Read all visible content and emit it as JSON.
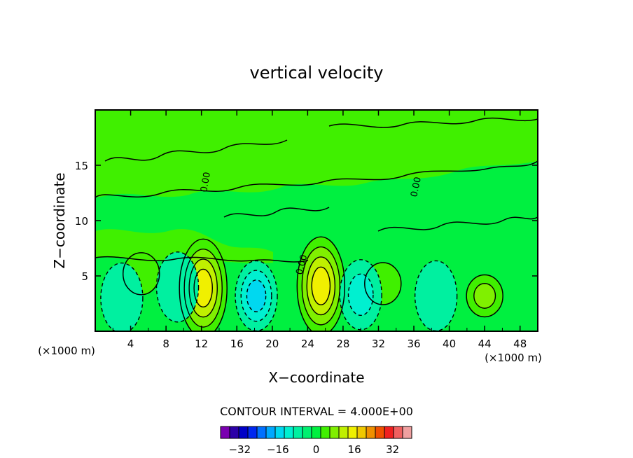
{
  "chart_data": {
    "type": "heatmap",
    "title": "vertical velocity",
    "xlabel": "X−coordinate",
    "ylabel": "Z−coordinate",
    "x_unit_left": "(×1000 m)",
    "x_unit_right": "(×1000 m)",
    "xlim": [
      0,
      50
    ],
    "ylim": [
      0,
      20
    ],
    "x_ticks": [
      "4",
      "8",
      "12",
      "16",
      "20",
      "24",
      "28",
      "32",
      "36",
      "40",
      "44",
      "48"
    ],
    "y_ticks": [
      "5",
      "10",
      "15"
    ],
    "contour_interval_label": "CONTOUR INTERVAL = 4.000E+00",
    "contour_interval": 4,
    "contour_label": "0.00",
    "colorbar": {
      "ticks": [
        "−32",
        "−16",
        "0",
        "16",
        "32"
      ],
      "tick_values": [
        -32,
        -16,
        0,
        16,
        32
      ],
      "levels": [
        -40,
        -36,
        -32,
        -28,
        -24,
        -20,
        -16,
        -12,
        -8,
        -4,
        0,
        4,
        8,
        12,
        16,
        20,
        24,
        28,
        32,
        36,
        40
      ],
      "colors": [
        "#7a00b0",
        "#2c00a8",
        "#0000c8",
        "#0028f0",
        "#0070ff",
        "#00a8ff",
        "#00d8f0",
        "#00f0d0",
        "#00f0a0",
        "#00f070",
        "#00f040",
        "#40f000",
        "#80f000",
        "#c0f000",
        "#f0f000",
        "#f0c800",
        "#f09000",
        "#f05000",
        "#f02020",
        "#f06060",
        "#f0a0a0"
      ]
    },
    "features": [
      {
        "name": "updraft",
        "x": 12.2,
        "z": 3.9,
        "peak": 18
      },
      {
        "name": "updraft",
        "x": 25.5,
        "z": 4.1,
        "peak": 18
      },
      {
        "name": "updraft",
        "x": 44.0,
        "z": 3.2,
        "peak": 9
      },
      {
        "name": "updraft",
        "x": 5.2,
        "z": 5.2,
        "peak": 5
      },
      {
        "name": "updraft",
        "x": 32.5,
        "z": 4.3,
        "peak": 5
      },
      {
        "name": "downdraft",
        "x": 18.2,
        "z": 3.2,
        "peak": -12
      },
      {
        "name": "downdraft",
        "x": 30.0,
        "z": 3.3,
        "peak": -9
      },
      {
        "name": "downdraft",
        "x": 3.0,
        "z": 3.0,
        "peak": -7
      },
      {
        "name": "downdraft",
        "x": 9.3,
        "z": 4.0,
        "peak": -6
      },
      {
        "name": "downdraft",
        "x": 38.5,
        "z": 3.2,
        "peak": -5
      }
    ]
  }
}
